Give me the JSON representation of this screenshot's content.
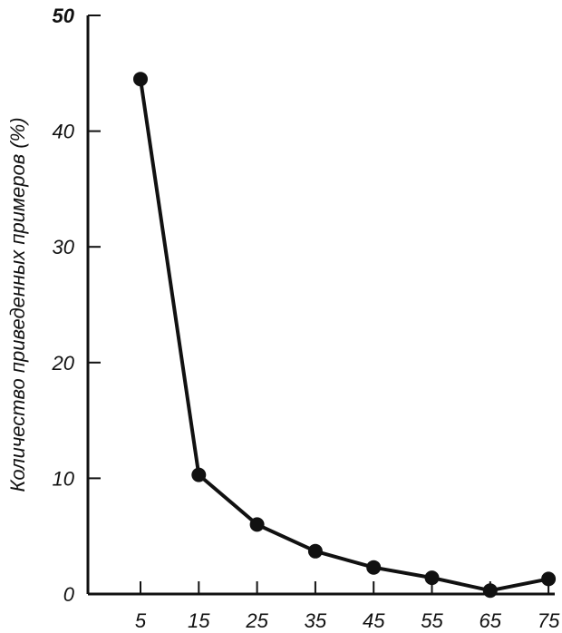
{
  "chart_data": {
    "type": "line",
    "title": "",
    "xlabel": "",
    "ylabel": "Количество приведенных примеров (%)",
    "x": [
      5,
      15,
      25,
      35,
      45,
      55,
      65,
      75
    ],
    "series": [
      {
        "values": [
          44.5,
          10.3,
          6.0,
          3.7,
          2.3,
          1.4,
          0.3,
          1.3
        ]
      }
    ],
    "xticks": [
      5,
      15,
      25,
      35,
      45,
      55,
      65,
      75
    ],
    "yticks": [
      0,
      10,
      20,
      30,
      40,
      50
    ],
    "ylim": [
      0,
      50
    ],
    "grid": false,
    "legend": "none",
    "colors": {
      "ink": "#111111",
      "background": "#ffffff"
    }
  }
}
